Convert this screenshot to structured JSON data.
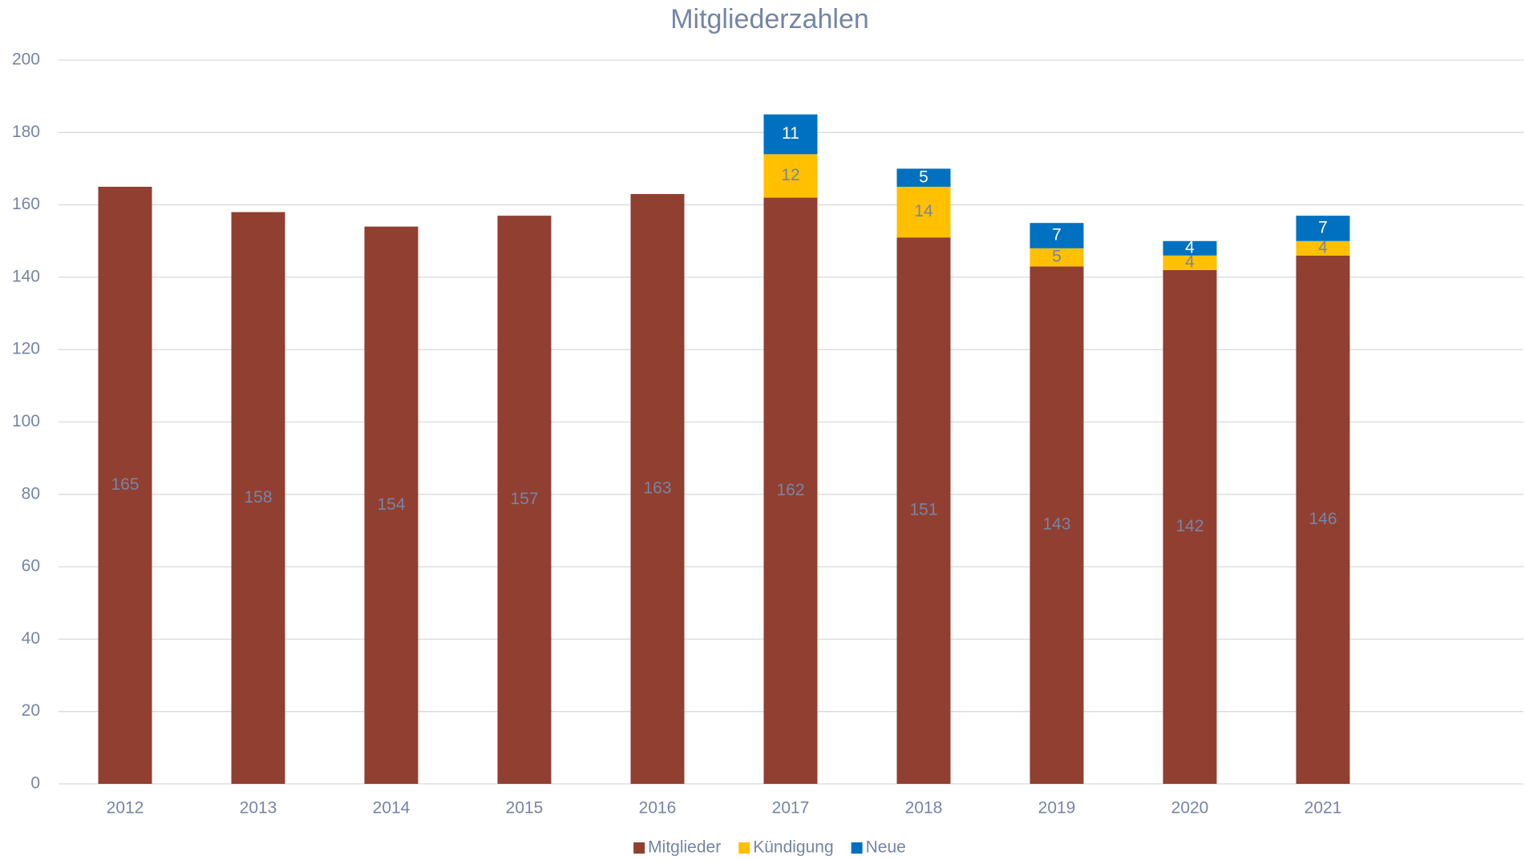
{
  "chart_data": {
    "type": "stacked_bar",
    "title": "Mitgliederzahlen",
    "categories": [
      "2012",
      "2013",
      "2014",
      "2015",
      "2016",
      "2017",
      "2018",
      "2019",
      "2020",
      "2021"
    ],
    "series": [
      {
        "name": "Mitglieder",
        "color": "#913f30",
        "values": [
          165,
          158,
          154,
          157,
          163,
          162,
          151,
          143,
          142,
          146
        ]
      },
      {
        "name": "Kündigung",
        "color": "#ffc000",
        "values": [
          null,
          null,
          null,
          null,
          null,
          12,
          14,
          5,
          4,
          4
        ]
      },
      {
        "name": "Neue",
        "color": "#0070c0",
        "values": [
          null,
          null,
          null,
          null,
          null,
          11,
          5,
          7,
          4,
          7
        ]
      }
    ],
    "ylim": [
      0,
      200
    ],
    "yticks": [
      0,
      20,
      40,
      60,
      80,
      100,
      120,
      140,
      160,
      180,
      200
    ],
    "grid": true,
    "legend": "bottom"
  }
}
